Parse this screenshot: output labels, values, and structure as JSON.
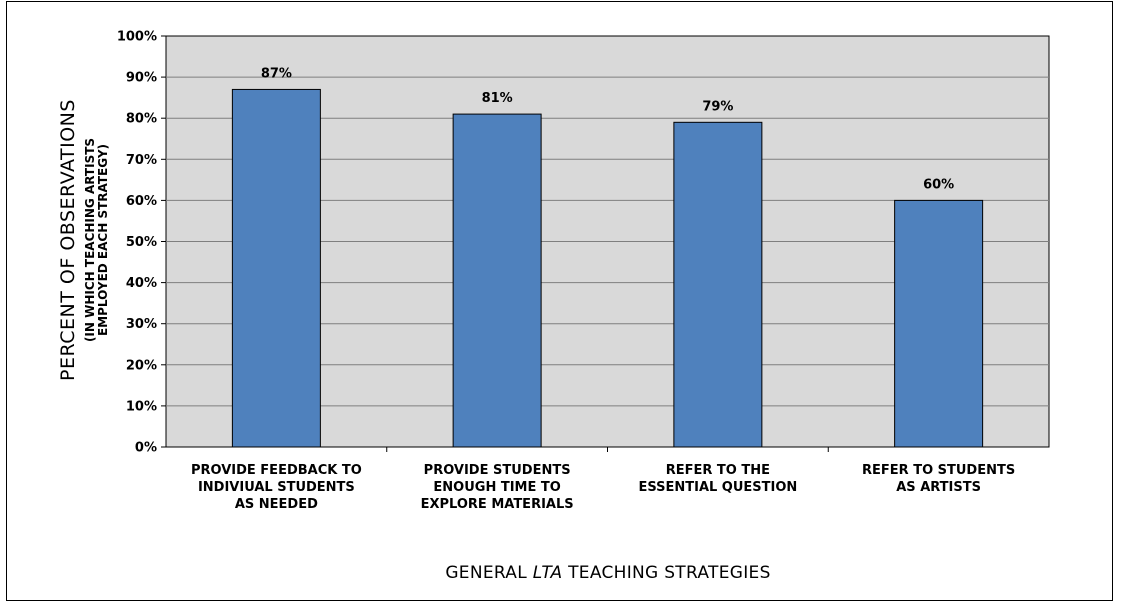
{
  "chart_data": {
    "type": "bar",
    "categories": [
      [
        "PROVIDE FEEDBACK TO",
        "INDIVIUAL STUDENTS",
        "AS NEEDED"
      ],
      [
        "PROVIDE STUDENTS",
        "ENOUGH TIME TO",
        "EXPLORE MATERIALS"
      ],
      [
        "REFER TO THE",
        "ESSENTIAL QUESTION"
      ],
      [
        "REFER TO STUDENTS",
        "AS ARTISTS"
      ]
    ],
    "values": [
      87,
      81,
      79,
      60
    ],
    "data_labels": [
      "87%",
      "81%",
      "79%",
      "60%"
    ],
    "ylabel": "PERCENT OF OBSERVATIONS",
    "ylabel_sub": [
      "(IN WHICH TEACHING ARTISTS",
      "EMPLOYED EACH STRATEGY)"
    ],
    "xlabel_parts": [
      "GENERAL ",
      "LTA",
      " TEACHING STRATEGIES"
    ],
    "ylim": [
      0,
      100
    ],
    "yticks": [
      0,
      10,
      20,
      30,
      40,
      50,
      60,
      70,
      80,
      90,
      100
    ],
    "ytick_labels": [
      "0%",
      "10%",
      "20%",
      "30%",
      "40%",
      "50%",
      "60%",
      "70%",
      "80%",
      "90%",
      "100%"
    ],
    "grid": true,
    "colors": {
      "bar": "#4f81bd",
      "plot_bg": "#d9d9d9",
      "grid": "#7f7f7f"
    }
  }
}
